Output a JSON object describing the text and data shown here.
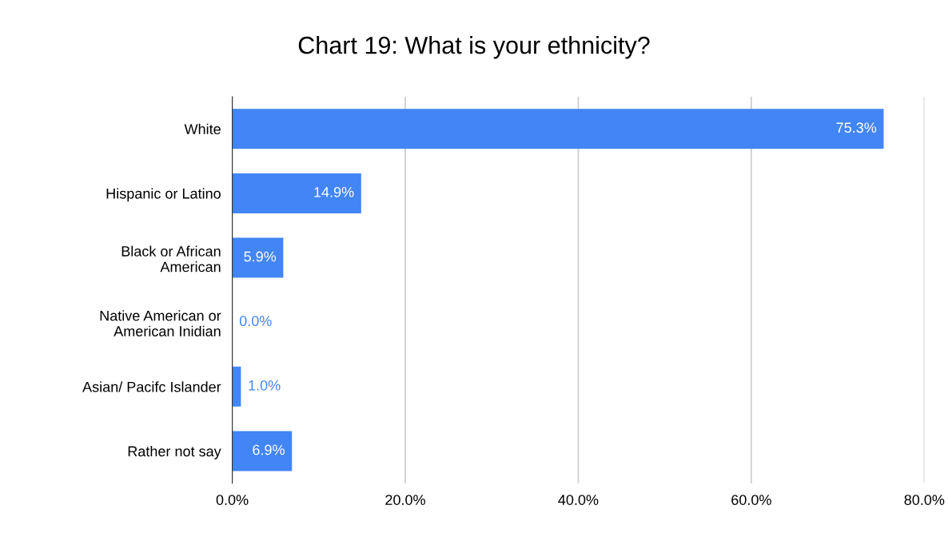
{
  "chart_data": {
    "type": "bar",
    "orientation": "horizontal",
    "title": "Chart 19: What is your ethnicity?",
    "categories": [
      "White",
      "Hispanic or Latino",
      "Black or African\nAmerican",
      "Native American or\nAmerican Inidian",
      "Asian/ Pacifc Islander",
      "Rather not say"
    ],
    "values": [
      75.3,
      14.9,
      5.9,
      0.0,
      1.0,
      6.9
    ],
    "value_labels": [
      "75.3%",
      "14.9%",
      "5.9%",
      "0.0%",
      "1.0%",
      "6.9%"
    ],
    "color": "#4285f4",
    "xlim": [
      0,
      80
    ],
    "xticks": [
      {
        "value": 0,
        "label": "0.0%"
      },
      {
        "value": 20,
        "label": "20.0%"
      },
      {
        "value": 40,
        "label": "40.0%"
      },
      {
        "value": 60,
        "label": "60.0%"
      },
      {
        "value": 80,
        "label": "80.0%"
      }
    ],
    "grid": "x",
    "legend": false
  }
}
